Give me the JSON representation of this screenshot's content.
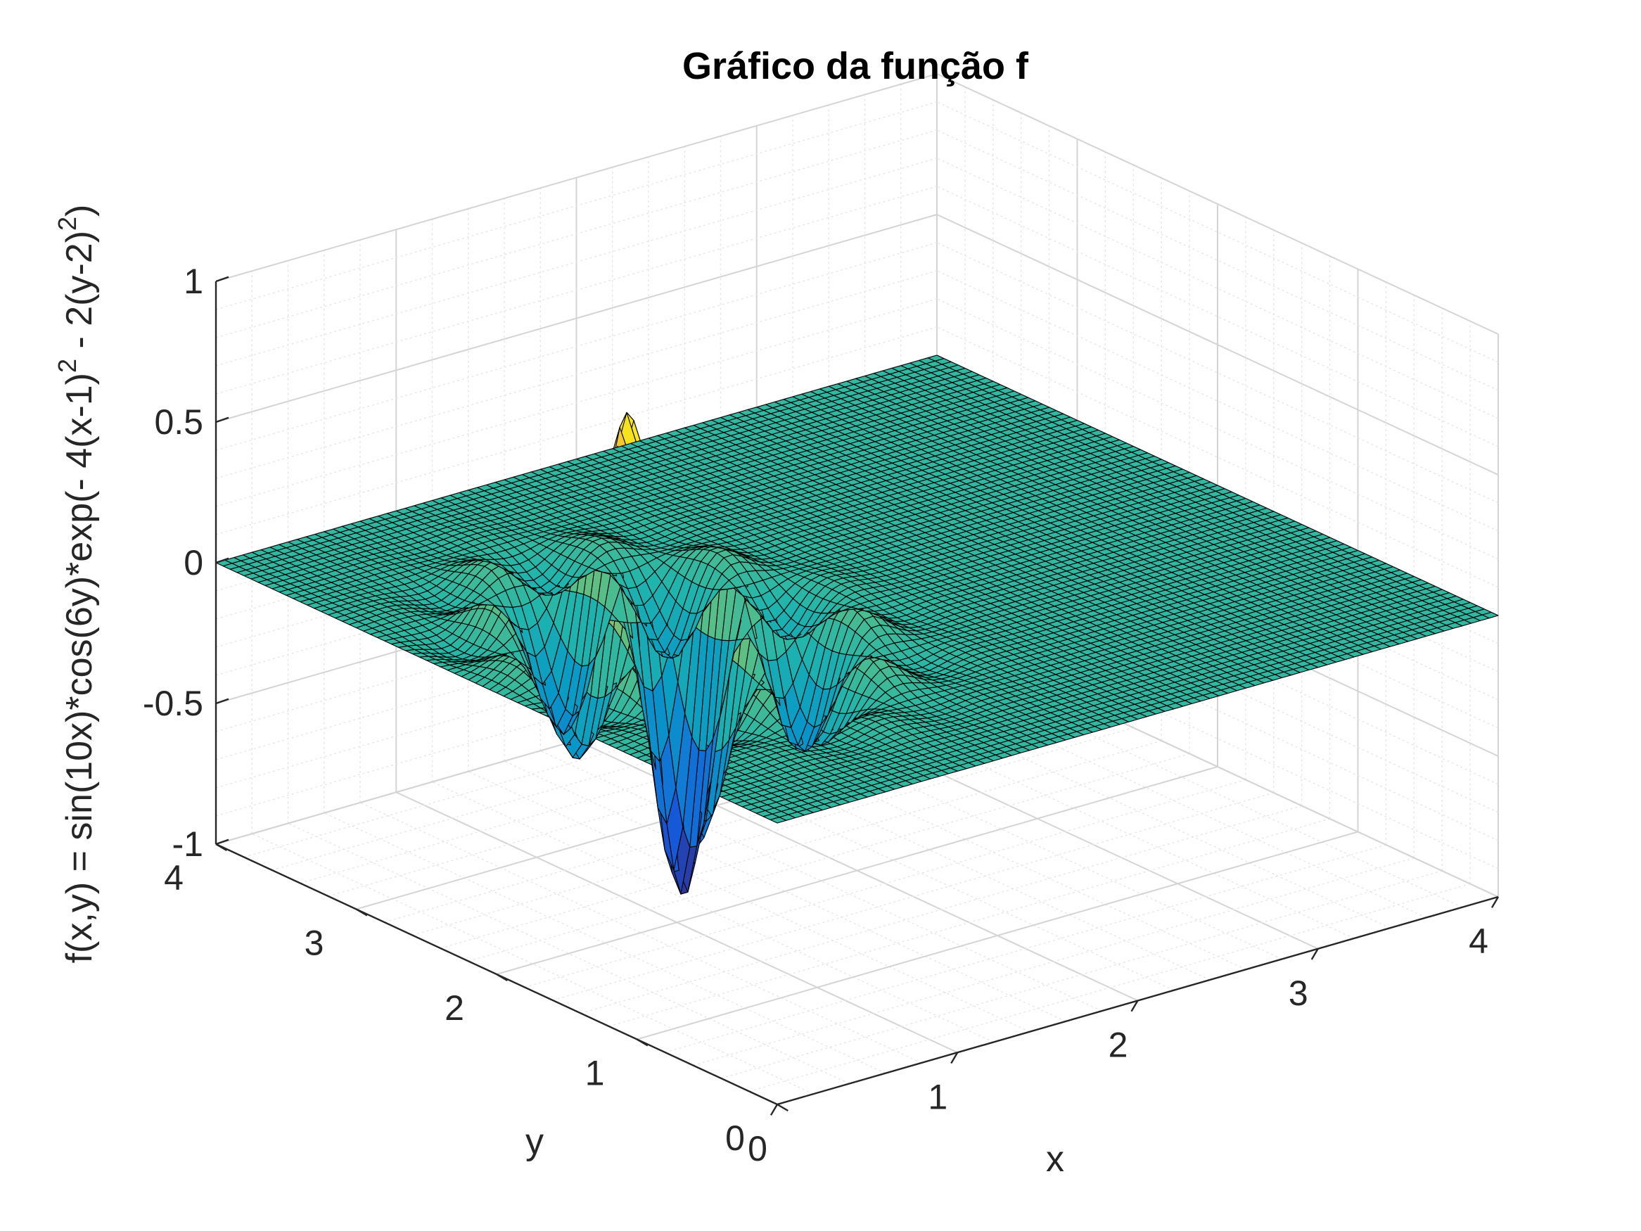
{
  "chart_data": {
    "type": "surface",
    "title": "Gráfico da função f",
    "xlabel": "x",
    "ylabel": "y",
    "zlabel": {
      "lead": "f(x,y) = sin(10x)*cos(6y)*exp(- 4(x-1)",
      "sup1": "2",
      "mid": " - 2(y-2)",
      "sup2": "2",
      "tail": ")"
    },
    "xlim": [
      0,
      4
    ],
    "ylim": [
      0,
      4
    ],
    "zlim": [
      -1,
      1
    ],
    "x_ticks": [
      "0",
      "1",
      "2",
      "3",
      "4"
    ],
    "y_ticks": [
      "0",
      "1",
      "2",
      "3",
      "4"
    ],
    "z_ticks": [
      "-1",
      "-0.5",
      "0",
      "0.5",
      "1"
    ],
    "grid": true,
    "minor_grid": true,
    "colormap": "parula",
    "edge_color": "#000000",
    "function": "sin(10x)*cos(6y)*exp(-4(x-1)^2 - 2(y-2)^2)",
    "mesh_step": 0.05
  }
}
